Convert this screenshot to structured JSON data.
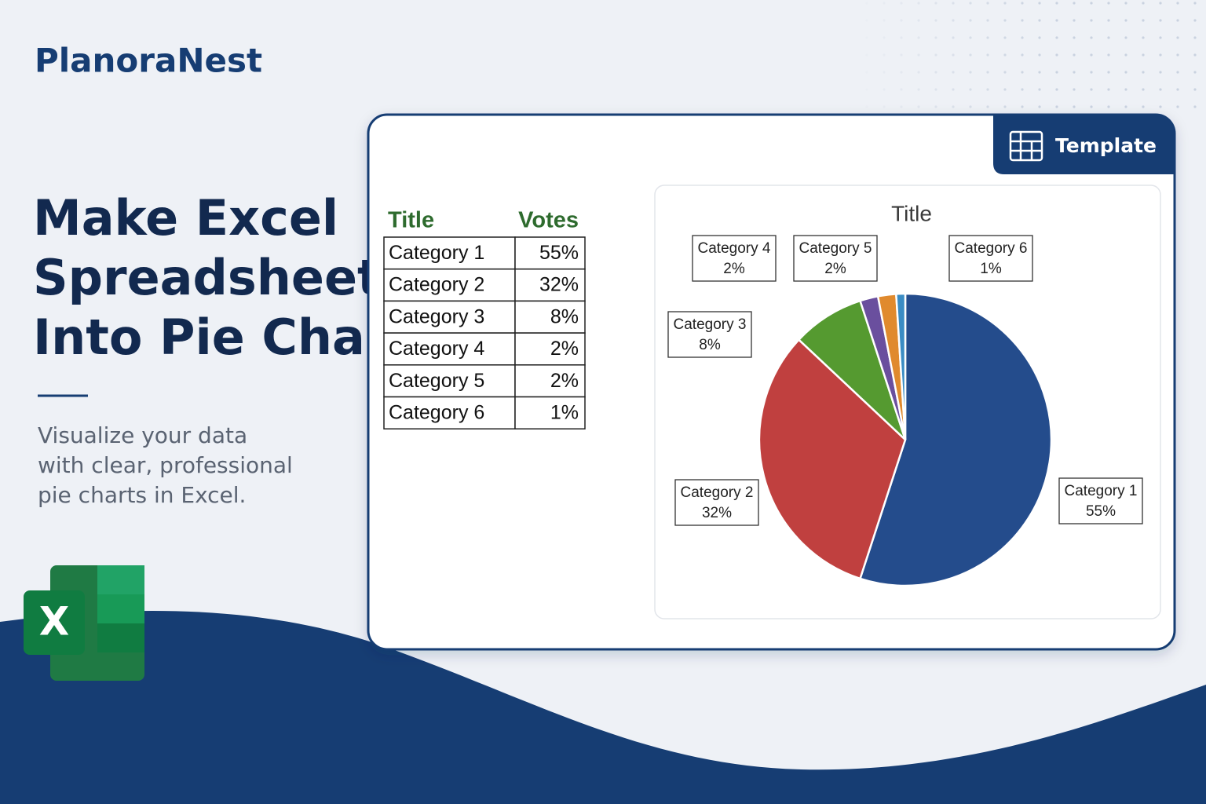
{
  "brand": "PlanoraNest",
  "headline": [
    "Make Excel",
    "Spreadsheet",
    "Into Pie Chart"
  ],
  "subtitle": [
    "Visualize your data",
    "with clear, professional",
    "pie charts in Excel."
  ],
  "icon": {
    "letter": "X"
  },
  "badge": "Template",
  "table": {
    "header": [
      "Title",
      "Votes"
    ],
    "rows": [
      [
        "Category 1",
        "55%"
      ],
      [
        "Category 2",
        "32%"
      ],
      [
        "Category 3",
        "8%"
      ],
      [
        "Category 4",
        "2%"
      ],
      [
        "Category 5",
        "2%"
      ],
      [
        "Category 6",
        "1%"
      ]
    ]
  },
  "chart_data": {
    "type": "pie",
    "title": "Title",
    "categories": [
      "Category 1",
      "Category 2",
      "Category 3",
      "Category 4",
      "Category 5",
      "Category 6"
    ],
    "values": [
      55,
      32,
      8,
      2,
      2,
      1
    ],
    "value_labels": [
      "55%",
      "32%",
      "8%",
      "2%",
      "2%",
      "1%"
    ],
    "colors": [
      "#244c8c",
      "#c0403f",
      "#559a30",
      "#6a4f9e",
      "#e08a2e",
      "#3a8cc4"
    ]
  }
}
